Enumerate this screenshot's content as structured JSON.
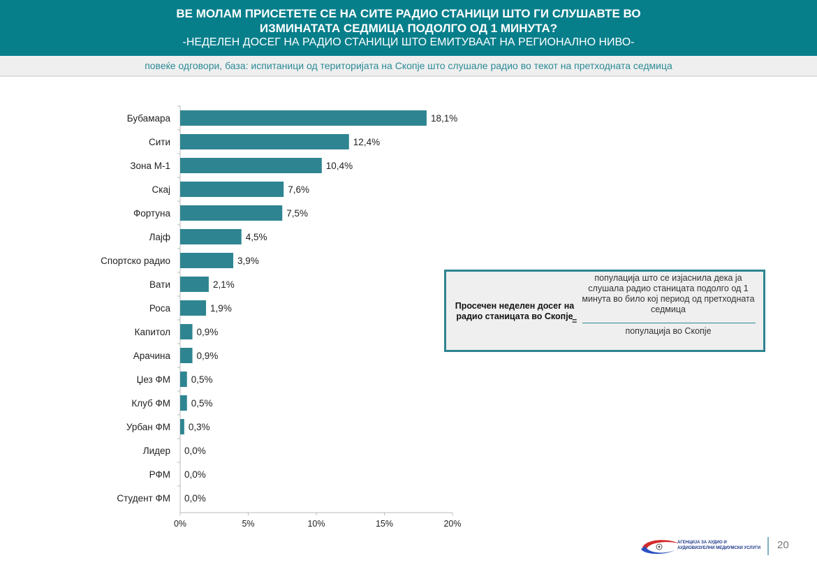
{
  "header": {
    "title_line1": "ВЕ МОЛАМ ПРИСЕТЕТЕ СЕ НА СИТЕ РАДИО СТАНИЦИ ШТО ГИ СЛУШАВТЕ ВО",
    "title_line2": "ИЗМИНАТАТА СЕДМИЦА ПОДОЛГО ОД 1 МИНУТА?",
    "subtitle": "-НЕДЕЛЕН ДОСЕГ НА РАДИО СТАНИЦИ ШТО ЕМИТУВААТ НА РЕГИОНАЛНО НИВО-"
  },
  "note": "повеќе одговори, база: испитаници од територијата на Скопје што слушале  радио во текот на претходната седмица",
  "formula": {
    "lhs": "Просечен неделен досег на радио станицата во Скопје",
    "eq": "=",
    "numerator": "популација што се изјаснила дека ја слушала радио станицата подолго од 1 минута во било кој период од претходната седмица",
    "denominator": "популација во Скопје"
  },
  "footer": {
    "logo_text": "АГЕНЦИЈА ЗА АУДИО И АУДИОВИЗУЕЛНИ МЕДИУМСКИ УСЛУГИ",
    "page": "20"
  },
  "colors": {
    "header": "#077f8b",
    "bar": "#2e8591"
  },
  "chart_data": {
    "type": "bar",
    "orientation": "horizontal",
    "categories": [
      "Бубамара",
      "Сити",
      "Зона М-1",
      "Скај",
      "Фортуна",
      "Лајф",
      "Спортско радио",
      "Вати",
      "Роса",
      "Капитол",
      "Арачина",
      "Џез ФМ",
      "Клуб ФМ",
      "Урбан ФМ",
      "Лидер",
      "РФМ",
      "Студент ФМ"
    ],
    "values": [
      18.1,
      12.4,
      10.4,
      7.6,
      7.5,
      4.5,
      3.9,
      2.1,
      1.9,
      0.9,
      0.9,
      0.5,
      0.5,
      0.3,
      0.0,
      0.0,
      0.0
    ],
    "labels": [
      "18,1%",
      "12,4%",
      "10,4%",
      "7,6%",
      "7,5%",
      "4,5%",
      "3,9%",
      "2,1%",
      "1,9%",
      "0,9%",
      "0,9%",
      "0,5%",
      "0,5%",
      "0,3%",
      "0,0%",
      "0,0%",
      "0,0%"
    ],
    "xticks": [
      "0%",
      "5%",
      "10%",
      "15%",
      "20%"
    ],
    "xlim": [
      0,
      20
    ],
    "grid": false
  }
}
